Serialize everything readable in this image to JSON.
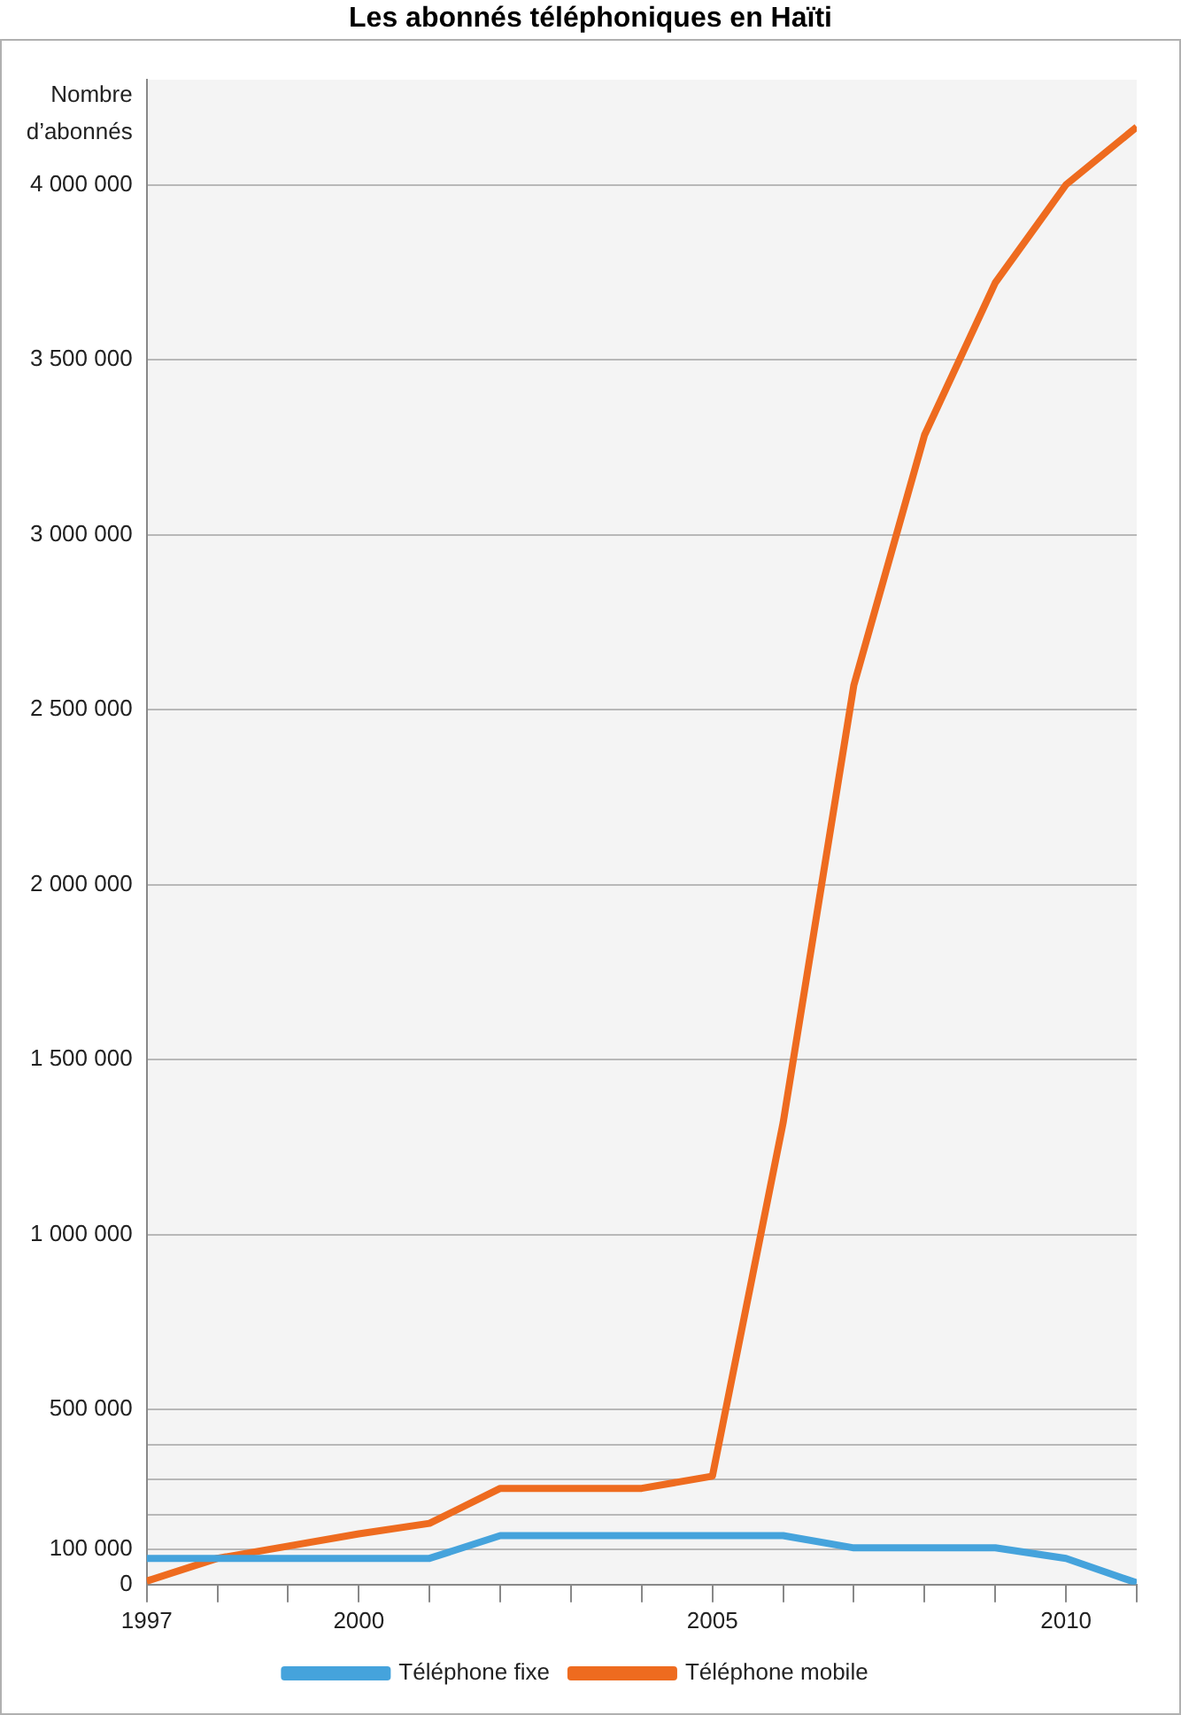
{
  "chart_data": {
    "type": "line",
    "title": "Les abonnés téléphoniques en Haïti",
    "ylabel": "Nombre d’abonnés",
    "x": [
      1997,
      1998,
      1999,
      2000,
      2001,
      2002,
      2003,
      2004,
      2005,
      2006,
      2007,
      2008,
      2009,
      2010,
      2011
    ],
    "series": [
      {
        "name": "Téléphone fixe",
        "color": "#45a3dc",
        "values": [
          75000,
          75000,
          75000,
          75000,
          75000,
          140000,
          140000,
          140000,
          140000,
          140000,
          105000,
          105000,
          105000,
          75000,
          5000
        ]
      },
      {
        "name": "Téléphone mobile",
        "color": "#ee6b1f",
        "values": [
          10000,
          75000,
          110000,
          145000,
          175000,
          275000,
          275000,
          275000,
          310000,
          1320000,
          2570000,
          3285000,
          3720000,
          4000000,
          4165000
        ]
      }
    ],
    "xlim": [
      1997,
      2011
    ],
    "xticks": [
      1997,
      {
        "value": 1998,
        "label": null
      },
      {
        "value": 1999,
        "label": null
      },
      2000,
      {
        "value": 2001,
        "label": null
      },
      {
        "value": 2002,
        "label": null
      },
      {
        "value": 2003,
        "label": null
      },
      {
        "value": 2004,
        "label": null
      },
      2005,
      {
        "value": 2006,
        "label": null
      },
      {
        "value": 2007,
        "label": null
      },
      {
        "value": 2008,
        "label": null
      },
      {
        "value": 2009,
        "label": null
      },
      2010,
      {
        "value": 2011,
        "label": null
      }
    ],
    "ylim": [
      0,
      4300000
    ],
    "yticks": [
      {
        "value": 0,
        "label": "0"
      },
      {
        "value": 100000,
        "label": "100 000"
      },
      {
        "value": 200000,
        "label": null
      },
      {
        "value": 300000,
        "label": null
      },
      {
        "value": 400000,
        "label": null
      },
      {
        "value": 500000,
        "label": "500 000"
      },
      {
        "value": 1000000,
        "label": "1 000 000"
      },
      {
        "value": 1500000,
        "label": "1 500 000"
      },
      {
        "value": 2000000,
        "label": "2 000 000"
      },
      {
        "value": 2500000,
        "label": "2 500 000"
      },
      {
        "value": 3000000,
        "label": "3 000 000"
      },
      {
        "value": 3500000,
        "label": "3 500 000"
      },
      {
        "value": 4000000,
        "label": "4 000 000"
      }
    ],
    "grid": "y",
    "legend": "bottom",
    "marker": "none",
    "line_style": "solid"
  }
}
